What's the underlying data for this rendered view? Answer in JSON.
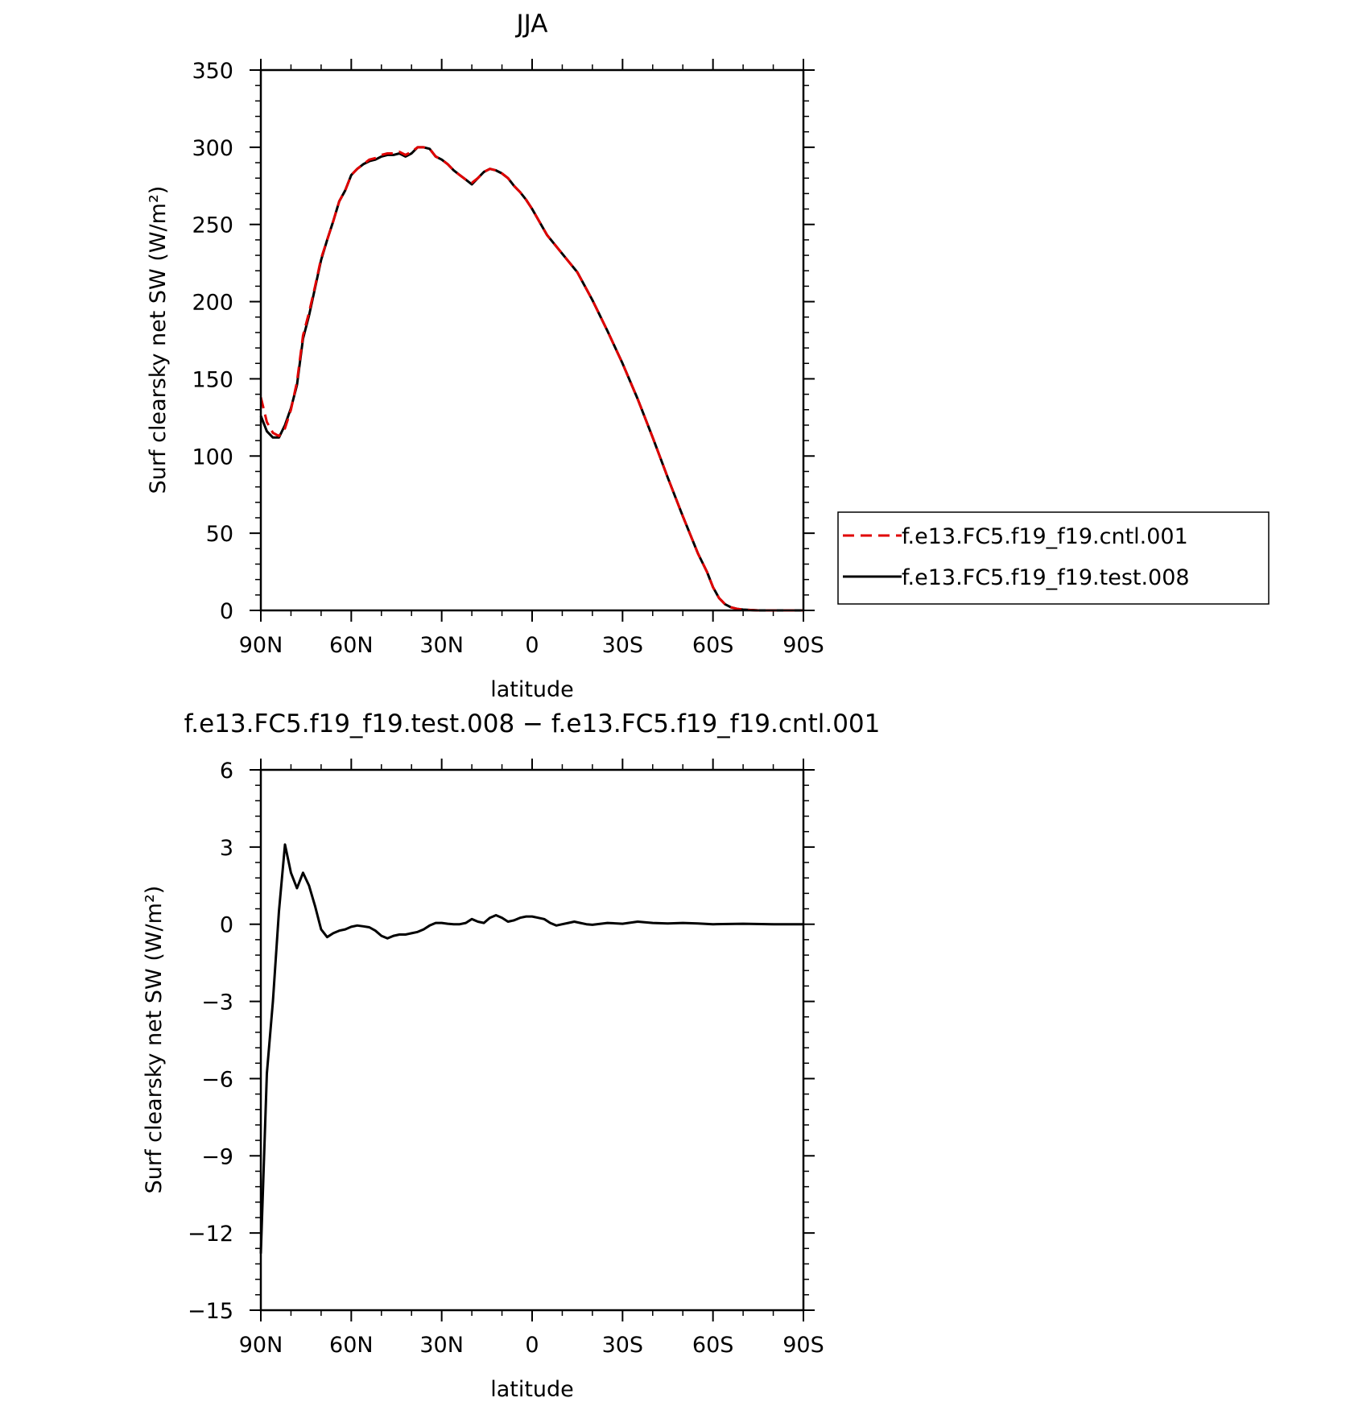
{
  "chart_data": [
    {
      "type": "line",
      "title": "JJA",
      "xlabel": "latitude",
      "ylabel": "Surf clearsky net SW (W/m²)",
      "xlim": [
        90,
        -90
      ],
      "ylim": [
        0,
        350
      ],
      "x_ticks": [
        90,
        60,
        30,
        0,
        -30,
        -60,
        -90
      ],
      "x_tick_labels": [
        "90N",
        "60N",
        "30N",
        "0",
        "30S",
        "60S",
        "90S"
      ],
      "y_ticks": [
        0,
        50,
        100,
        150,
        200,
        250,
        300,
        350
      ],
      "y_tick_labels": [
        "0",
        "50",
        "100",
        "150",
        "200",
        "250",
        "300",
        "350"
      ],
      "legend_position": "right",
      "grid": false,
      "series": [
        {
          "name": "f.e13.FC5.f19_f19.cntl.001",
          "color": "#e00000",
          "dash": "dashed",
          "x": [
            90,
            88,
            86,
            84,
            82,
            80,
            78,
            76,
            74,
            72,
            70,
            68,
            66,
            64,
            62,
            60,
            58,
            56,
            54,
            52,
            50,
            48,
            46,
            44,
            42,
            40,
            38,
            36,
            34,
            32,
            30,
            28,
            26,
            24,
            22,
            20,
            18,
            16,
            14,
            12,
            10,
            8,
            6,
            4,
            2,
            0,
            -5,
            -10,
            -15,
            -20,
            -25,
            -30,
            -35,
            -40,
            -45,
            -50,
            -55,
            -58,
            -60,
            -62,
            -64,
            -66,
            -68,
            -70,
            -75,
            -80,
            -85,
            -90
          ],
          "y": [
            138,
            122,
            115,
            113,
            118,
            130,
            148,
            178,
            193,
            210,
            228,
            240,
            252,
            265,
            272,
            282,
            286,
            289,
            292,
            293,
            295,
            296,
            296,
            297,
            295,
            297,
            300,
            300,
            299,
            294,
            292,
            289,
            285,
            282,
            279,
            277,
            280,
            284,
            286,
            285,
            283,
            280,
            275,
            271,
            266,
            260,
            243,
            231,
            219,
            201,
            181,
            160,
            137,
            112,
            86,
            61,
            37,
            25,
            15,
            8,
            4,
            2,
            1,
            0.5,
            0,
            0,
            0,
            0
          ]
        },
        {
          "name": "f.e13.FC5.f19_f19.test.008",
          "color": "#000000",
          "dash": "solid",
          "x": [
            90,
            88,
            86,
            84,
            82,
            80,
            78,
            76,
            74,
            72,
            70,
            68,
            66,
            64,
            62,
            60,
            58,
            56,
            54,
            52,
            50,
            48,
            46,
            44,
            42,
            40,
            38,
            36,
            34,
            32,
            30,
            28,
            26,
            24,
            22,
            20,
            18,
            16,
            14,
            12,
            10,
            8,
            6,
            4,
            2,
            0,
            -5,
            -10,
            -15,
            -20,
            -25,
            -30,
            -35,
            -40,
            -45,
            -50,
            -55,
            -58,
            -60,
            -62,
            -64,
            -66,
            -68,
            -70,
            -75,
            -80,
            -85,
            -90
          ],
          "y": [
            126,
            116,
            112,
            112,
            120,
            131,
            146,
            176,
            191,
            209,
            227,
            240,
            252,
            265,
            272,
            282,
            286,
            289,
            291,
            292,
            294,
            295,
            295,
            296,
            294,
            296,
            300,
            300,
            299,
            294,
            292,
            289,
            285,
            282,
            279,
            276,
            280,
            284,
            286,
            285,
            283,
            280,
            275,
            271,
            266,
            260,
            243,
            231,
            219,
            201,
            181,
            160,
            137,
            112,
            86,
            61,
            37,
            25,
            15,
            8,
            4,
            2,
            1,
            0.5,
            0,
            0,
            0,
            0
          ]
        }
      ]
    },
    {
      "type": "line",
      "title": "f.e13.FC5.f19_f19.test.008 − f.e13.FC5.f19_f19.cntl.001",
      "xlabel": "latitude",
      "ylabel": "Surf clearsky net SW (W/m²)",
      "xlim": [
        90,
        -90
      ],
      "ylim": [
        -15,
        6
      ],
      "x_ticks": [
        90,
        60,
        30,
        0,
        -30,
        -60,
        -90
      ],
      "x_tick_labels": [
        "90N",
        "60N",
        "30N",
        "0",
        "30S",
        "60S",
        "90S"
      ],
      "y_ticks": [
        -15,
        -12,
        -9,
        -6,
        -3,
        0,
        3,
        6
      ],
      "y_tick_labels": [
        "−15",
        "−12",
        "−9",
        "−6",
        "−3",
        "0",
        "3",
        "6"
      ],
      "grid": false,
      "series": [
        {
          "color": "#000000",
          "dash": "solid",
          "x": [
            90,
            88,
            86,
            84,
            82,
            80,
            78,
            76,
            74,
            72,
            70,
            68,
            66,
            64,
            62,
            60,
            58,
            56,
            54,
            52,
            50,
            48,
            46,
            44,
            42,
            40,
            38,
            36,
            34,
            32,
            30,
            28,
            26,
            24,
            22,
            20,
            18,
            16,
            14,
            12,
            10,
            8,
            6,
            4,
            2,
            0,
            -2,
            -4,
            -6,
            -8,
            -10,
            -12,
            -14,
            -16,
            -18,
            -20,
            -25,
            -30,
            -35,
            -40,
            -45,
            -50,
            -55,
            -60,
            -70,
            -80,
            -90
          ],
          "y": [
            -12.8,
            -5.8,
            -3.0,
            0.5,
            3.1,
            2.0,
            1.4,
            2.0,
            1.5,
            0.7,
            -0.2,
            -0.5,
            -0.35,
            -0.25,
            -0.2,
            -0.1,
            -0.05,
            -0.08,
            -0.12,
            -0.25,
            -0.45,
            -0.55,
            -0.45,
            -0.4,
            -0.4,
            -0.35,
            -0.3,
            -0.2,
            -0.05,
            0.05,
            0.05,
            0.02,
            0.0,
            0.0,
            0.05,
            0.2,
            0.1,
            0.05,
            0.25,
            0.35,
            0.25,
            0.1,
            0.15,
            0.25,
            0.3,
            0.3,
            0.25,
            0.2,
            0.05,
            -0.05,
            0.0,
            0.05,
            0.1,
            0.05,
            0.0,
            -0.02,
            0.05,
            0.02,
            0.1,
            0.05,
            0.03,
            0.05,
            0.03,
            0.0,
            0.02,
            0.0,
            0.0
          ]
        }
      ]
    }
  ]
}
